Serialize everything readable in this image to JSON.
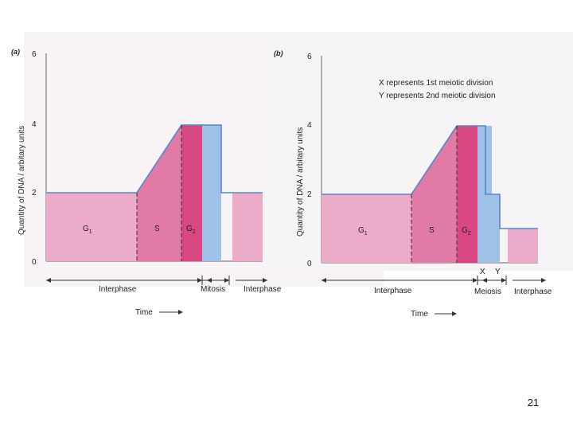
{
  "page_number": "21",
  "panel_a": {
    "label": "(a)",
    "ylabel": "Quantity of DNA / arbitary units",
    "y_ticks": [
      "0",
      "2",
      "4",
      "6"
    ],
    "phases": [
      "G1",
      "S",
      "G2"
    ],
    "phase_labels": {
      "g1": "G",
      "g1_sub": "1",
      "s": "S",
      "g2": "G",
      "g2_sub": "2"
    },
    "x_sections": [
      "Interphase",
      "Mitosis",
      "Interphase"
    ],
    "time_label": "Time"
  },
  "panel_b": {
    "label": "(b)",
    "ylabel": "Quantity of DNA / arbitary units",
    "y_ticks": [
      "0",
      "2",
      "4",
      "6"
    ],
    "legend_x": "X represents 1st meiotic division",
    "legend_y": "Y represents 2nd meiotic division",
    "phase_labels": {
      "g1": "G",
      "g1_sub": "1",
      "s": "S",
      "g2": "G",
      "g2_sub": "2"
    },
    "markers": {
      "x": "X",
      "y": "Y"
    },
    "x_sections": [
      "Interphase",
      "Meiosis",
      "Interphase"
    ],
    "time_label": "Time"
  },
  "colors": {
    "g1": "#ecabc9",
    "s": "#e27aa8",
    "g2": "#d94882",
    "division": "#9fc1e8",
    "line": "#5b86c7"
  }
}
